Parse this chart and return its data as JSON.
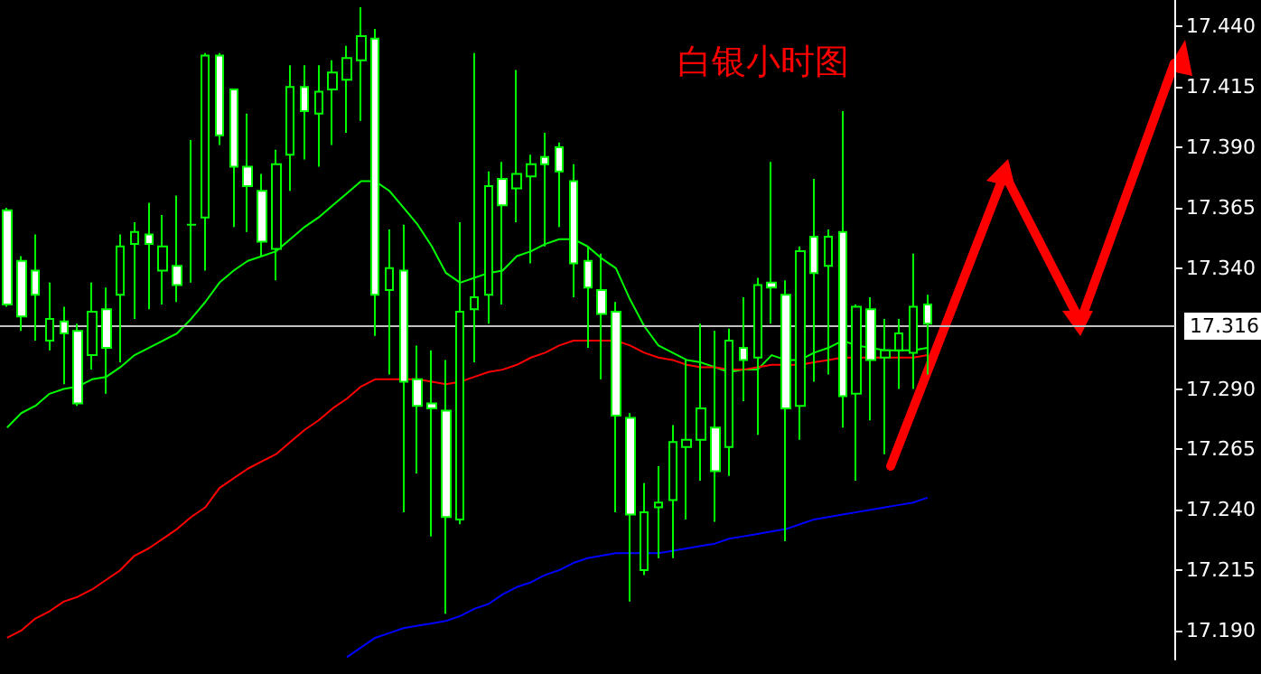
{
  "chart_data": {
    "type": "candlestick",
    "title": "白银小时图",
    "color": "#00ff00",
    "marker": "none",
    "line_style": "solid",
    "categories": [
      null,
      null,
      null,
      null,
      null,
      null,
      null,
      null,
      null,
      null,
      null,
      null,
      null,
      null,
      null,
      null,
      null,
      null,
      null,
      null,
      null,
      null,
      null,
      null,
      null,
      null,
      null,
      null,
      null,
      null,
      null,
      null,
      null,
      null,
      null,
      null,
      null,
      null,
      null,
      null,
      null,
      null,
      null,
      null,
      null,
      null,
      null,
      null,
      null,
      null,
      null,
      null,
      null,
      null,
      null,
      null,
      null,
      null,
      null,
      null,
      null,
      null,
      null,
      null,
      null,
      null,
      null,
      null,
      null,
      null,
      null,
      null,
      null,
      null,
      null,
      null,
      null,
      null,
      null,
      null,
      null,
      null,
      null
    ],
    "ohlc": [
      [
        17.364,
        17.365,
        17.324,
        17.325
      ],
      [
        17.343,
        17.345,
        17.314,
        17.32
      ],
      [
        17.339,
        17.354,
        17.31,
        17.329
      ],
      [
        17.31,
        17.334,
        17.306,
        17.319
      ],
      [
        17.318,
        17.324,
        17.292,
        17.313
      ],
      [
        17.314,
        17.317,
        17.283,
        17.284
      ],
      [
        17.304,
        17.334,
        17.298,
        17.322
      ],
      [
        17.323,
        17.332,
        17.288,
        17.307
      ],
      [
        17.329,
        17.354,
        17.301,
        17.349
      ],
      [
        17.35,
        17.359,
        17.319,
        17.355
      ],
      [
        17.354,
        17.367,
        17.323,
        17.35
      ],
      [
        17.339,
        17.362,
        17.325,
        17.349
      ],
      [
        17.341,
        17.37,
        17.326,
        17.333
      ],
      [
        17.358,
        17.393,
        17.334,
        17.358
      ],
      [
        17.361,
        17.429,
        17.339,
        17.428
      ],
      [
        17.428,
        17.429,
        17.391,
        17.395
      ],
      [
        17.414,
        17.414,
        17.357,
        17.382
      ],
      [
        17.382,
        17.404,
        17.355,
        17.374
      ],
      [
        17.372,
        17.379,
        17.345,
        17.351
      ],
      [
        17.348,
        17.389,
        17.335,
        17.383
      ],
      [
        17.387,
        17.424,
        17.372,
        17.415
      ],
      [
        17.415,
        17.424,
        17.385,
        17.405
      ],
      [
        17.404,
        17.424,
        17.382,
        17.413
      ],
      [
        17.414,
        17.426,
        17.391,
        17.421
      ],
      [
        17.418,
        17.432,
        17.396,
        17.427
      ],
      [
        17.426,
        17.448,
        17.401,
        17.436
      ],
      [
        17.435,
        17.439,
        17.312,
        17.329
      ],
      [
        17.331,
        17.356,
        17.296,
        17.34
      ],
      [
        17.339,
        17.358,
        17.239,
        17.293
      ],
      [
        17.294,
        17.308,
        17.255,
        17.283
      ],
      [
        17.284,
        17.306,
        17.229,
        17.282
      ],
      [
        17.281,
        17.302,
        17.197,
        17.237
      ],
      [
        17.236,
        17.359,
        17.234,
        17.322
      ],
      [
        17.323,
        17.429,
        17.301,
        17.328
      ],
      [
        17.329,
        17.38,
        17.317,
        17.374
      ],
      [
        17.377,
        17.384,
        17.325,
        17.366
      ],
      [
        17.373,
        17.422,
        17.359,
        17.379
      ],
      [
        17.378,
        17.387,
        17.342,
        17.383
      ],
      [
        17.386,
        17.396,
        17.349,
        17.383
      ],
      [
        17.39,
        17.392,
        17.357,
        17.38
      ],
      [
        17.376,
        17.383,
        17.328,
        17.342
      ],
      [
        17.343,
        17.349,
        17.307,
        17.332
      ],
      [
        17.331,
        17.346,
        17.294,
        17.321
      ],
      [
        17.322,
        17.326,
        17.239,
        17.279
      ],
      [
        17.278,
        17.28,
        17.202,
        17.238
      ],
      [
        17.215,
        17.251,
        17.213,
        17.239
      ],
      [
        17.241,
        17.258,
        17.22,
        17.243
      ],
      [
        17.244,
        17.275,
        17.22,
        17.268
      ],
      [
        17.266,
        17.302,
        17.236,
        17.269
      ],
      [
        17.269,
        17.317,
        17.252,
        17.282
      ],
      [
        17.274,
        17.314,
        17.235,
        17.256
      ],
      [
        17.266,
        17.315,
        17.254,
        17.31
      ],
      [
        17.307,
        17.328,
        17.285,
        17.302
      ],
      [
        17.303,
        17.336,
        17.271,
        17.333
      ],
      [
        17.334,
        17.384,
        17.317,
        17.332
      ],
      [
        17.329,
        17.335,
        17.227,
        17.282
      ],
      [
        17.283,
        17.349,
        17.269,
        17.347
      ],
      [
        17.353,
        17.377,
        17.293,
        17.338
      ],
      [
        17.341,
        17.356,
        17.296,
        17.353
      ],
      [
        17.355,
        17.405,
        17.274,
        17.287
      ],
      [
        17.288,
        17.325,
        17.252,
        17.324
      ],
      [
        17.323,
        17.328,
        17.277,
        17.302
      ],
      [
        17.303,
        17.319,
        17.263,
        17.306
      ],
      [
        17.306,
        17.319,
        17.29,
        17.313
      ],
      [
        17.305,
        17.346,
        17.29,
        17.324
      ],
      [
        17.325,
        17.329,
        17.296,
        17.317
      ],
      null,
      null,
      null,
      null,
      null,
      null,
      null,
      null,
      null,
      null,
      null,
      null,
      null,
      null,
      null,
      null,
      null
    ],
    "series": [
      {
        "type": "line",
        "color": "#00ff00",
        "values": [
          17.274,
          17.28,
          17.283,
          17.288,
          17.29,
          17.291,
          17.294,
          17.295,
          17.299,
          17.304,
          17.307,
          17.31,
          17.313,
          17.319,
          17.326,
          17.334,
          17.339,
          17.343,
          17.345,
          17.347,
          17.352,
          17.357,
          17.361,
          17.366,
          17.371,
          17.376,
          17.376,
          17.372,
          17.365,
          17.358,
          17.349,
          17.338,
          17.334,
          17.336,
          17.338,
          17.339,
          17.345,
          17.347,
          17.35,
          17.352,
          17.352,
          17.349,
          17.344,
          17.34,
          17.327,
          17.316,
          17.308,
          17.305,
          17.302,
          17.301,
          17.299,
          17.297,
          17.298,
          17.298,
          17.304,
          17.302,
          17.302,
          17.305,
          17.307,
          17.31,
          17.308,
          17.307,
          17.306,
          17.306,
          17.306,
          17.307,
          null,
          null,
          null,
          null,
          null,
          null,
          null,
          null,
          null,
          null,
          null,
          null,
          null,
          null,
          null,
          null,
          null
        ]
      },
      {
        "type": "line",
        "color": "#ff0000",
        "values": [
          17.187,
          17.19,
          17.195,
          17.198,
          17.202,
          17.204,
          17.207,
          17.211,
          17.215,
          17.221,
          17.224,
          17.228,
          17.232,
          17.237,
          17.241,
          17.249,
          17.253,
          17.257,
          17.26,
          17.263,
          17.268,
          17.273,
          17.277,
          17.282,
          17.286,
          17.291,
          17.294,
          17.294,
          17.294,
          17.294,
          17.293,
          17.292,
          17.293,
          17.295,
          17.297,
          17.298,
          17.3,
          17.303,
          17.305,
          17.308,
          17.31,
          17.31,
          17.31,
          17.31,
          17.308,
          17.305,
          17.303,
          17.302,
          17.3,
          17.299,
          17.299,
          17.298,
          17.298,
          17.299,
          17.3,
          17.3,
          17.3,
          17.301,
          17.302,
          17.303,
          17.303,
          17.303,
          17.303,
          17.303,
          17.303,
          17.304,
          null,
          null,
          null,
          null,
          null,
          null,
          null,
          null,
          null,
          null,
          null,
          null,
          null,
          null,
          null,
          null,
          null
        ]
      },
      {
        "type": "line",
        "color": "#0000ff",
        "values": [
          null,
          null,
          null,
          null,
          null,
          null,
          null,
          null,
          null,
          null,
          null,
          null,
          null,
          null,
          null,
          null,
          null,
          null,
          null,
          null,
          null,
          null,
          null,
          null,
          17.179,
          17.183,
          17.187,
          17.189,
          17.191,
          17.192,
          17.193,
          17.194,
          17.196,
          17.199,
          17.201,
          17.205,
          17.208,
          17.21,
          17.213,
          17.215,
          17.218,
          17.22,
          17.221,
          17.222,
          17.222,
          17.222,
          17.222,
          17.223,
          17.224,
          17.225,
          17.226,
          17.228,
          17.229,
          17.23,
          17.231,
          17.232,
          17.234,
          17.236,
          17.237,
          17.238,
          17.239,
          17.24,
          17.241,
          17.242,
          17.243,
          17.245,
          null,
          null,
          null,
          null,
          null,
          null,
          null,
          null,
          null,
          null,
          null,
          null,
          null,
          null,
          null,
          null,
          null
        ]
      }
    ],
    "ylim": [
      17.178,
      17.451
    ],
    "yticks": [
      {
        "value": 17.19,
        "label": "17.190"
      },
      {
        "value": 17.215,
        "label": "17.215"
      },
      {
        "value": 17.24,
        "label": "17.240"
      },
      {
        "value": 17.265,
        "label": "17.265"
      },
      {
        "value": 17.29,
        "label": "17.290"
      },
      {
        "value": 17.34,
        "label": "17.340"
      },
      {
        "value": 17.365,
        "label": "17.365"
      },
      {
        "value": 17.39,
        "label": "17.390"
      },
      {
        "value": 17.415,
        "label": "17.415"
      },
      {
        "value": 17.44,
        "label": "17.440"
      }
    ],
    "ref_lines": [
      {
        "axis": "y",
        "value": 17.316,
        "label": "17.316",
        "color": "#c0c0c0"
      }
    ]
  }
}
